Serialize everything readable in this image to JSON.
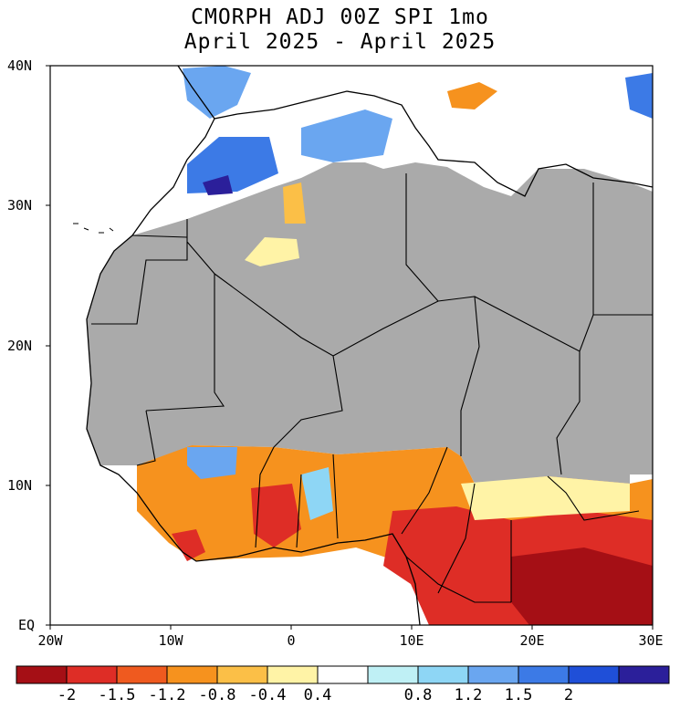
{
  "title_line1": "CMORPH ADJ 00Z SPI 1mo",
  "title_line2": "April 2025 - April 2025",
  "lat_labels": [
    "40N",
    "30N",
    "20N",
    "10N",
    "EQ"
  ],
  "lon_labels": [
    "20W",
    "10W",
    "0",
    "10E",
    "20E",
    "30E"
  ],
  "colorbar": {
    "colors": [
      "#a50f15",
      "#de2d26",
      "#ef5a1f",
      "#f6921e",
      "#fbbf47",
      "#fff3a6",
      "#ffffff",
      "#bff0f5",
      "#8ed6f5",
      "#6aa6f0",
      "#3c7ae6",
      "#1f4fd8",
      "#2b1f9a"
    ],
    "labels": [
      "-2",
      "-1.5",
      "-1.2",
      "-0.8",
      "-0.4",
      "0.4",
      "0.8",
      "1.2",
      "1.5",
      "2"
    ]
  },
  "legend_colors": {
    "no_data": "#aaaaaa",
    "ocean": "#ffffff",
    "dry": "#de2d26",
    "wet": "#3c7ae6"
  }
}
